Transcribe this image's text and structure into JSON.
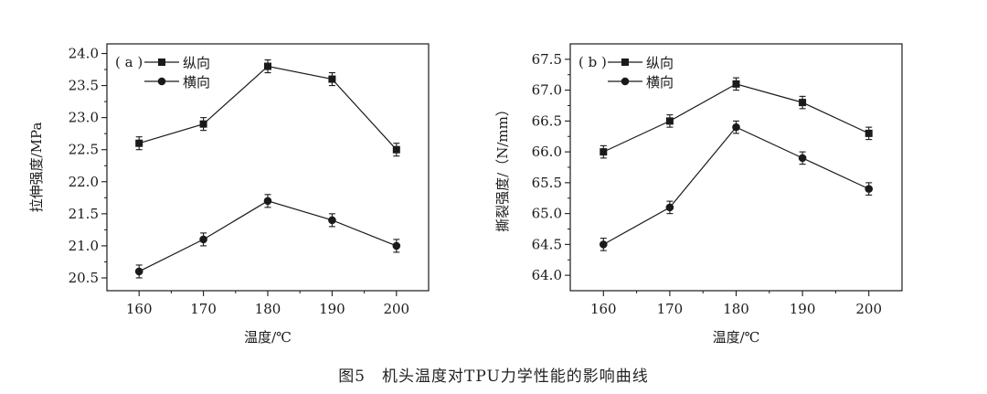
{
  "caption": "图5　机头温度对TPU力学性能的影响曲线",
  "chart_data": [
    {
      "type": "line",
      "panel_label": "( a )",
      "xlabel": "温度/℃",
      "ylabel": "拉伸强度/MPa",
      "x": [
        160,
        170,
        180,
        190,
        200
      ],
      "xticks": [
        "160",
        "170",
        "180",
        "190",
        "200"
      ],
      "xlim": [
        155,
        205
      ],
      "ylim": [
        20.3,
        24.15
      ],
      "yticks": [
        "20.5",
        "21.0",
        "21.5",
        "22.0",
        "22.5",
        "23.0",
        "23.5",
        "24.0"
      ],
      "grid": false,
      "legend_position": "top-left",
      "series": [
        {
          "name": "纵向",
          "marker": "square",
          "values": [
            22.6,
            22.9,
            23.8,
            23.6,
            22.5
          ],
          "error": [
            0.1,
            0.1,
            0.1,
            0.1,
            0.1
          ]
        },
        {
          "name": "横向",
          "marker": "circle",
          "values": [
            20.6,
            21.1,
            21.7,
            21.4,
            21.0
          ],
          "error": [
            0.1,
            0.1,
            0.1,
            0.1,
            0.1
          ]
        }
      ]
    },
    {
      "type": "line",
      "panel_label": "( b )",
      "xlabel": "温度/℃",
      "ylabel": "撕裂强度/（N/mm）",
      "x": [
        160,
        170,
        180,
        190,
        200
      ],
      "xticks": [
        "160",
        "170",
        "180",
        "190",
        "200"
      ],
      "xlim": [
        155,
        205
      ],
      "ylim": [
        63.75,
        67.75
      ],
      "yticks": [
        "64.0",
        "64.5",
        "65.0",
        "65.5",
        "66.0",
        "66.5",
        "67.0",
        "67.5"
      ],
      "grid": false,
      "legend_position": "top-left",
      "series": [
        {
          "name": "纵向",
          "marker": "square",
          "values": [
            66.0,
            66.5,
            67.1,
            66.8,
            66.3
          ],
          "error": [
            0.1,
            0.1,
            0.1,
            0.1,
            0.1
          ]
        },
        {
          "name": "横向",
          "marker": "circle",
          "values": [
            64.5,
            65.1,
            66.4,
            65.9,
            65.4
          ],
          "error": [
            0.1,
            0.1,
            0.1,
            0.1,
            0.1
          ]
        }
      ]
    }
  ]
}
